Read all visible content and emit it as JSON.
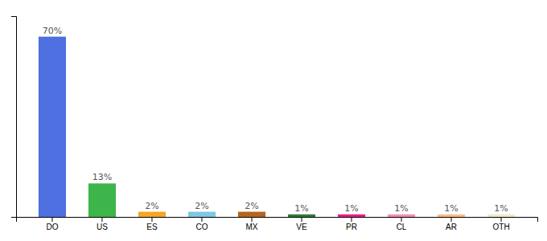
{
  "chart_data": {
    "type": "bar",
    "categories": [
      "DO",
      "US",
      "ES",
      "CO",
      "MX",
      "VE",
      "PR",
      "CL",
      "AR",
      "OTH"
    ],
    "values": [
      70,
      13,
      2,
      2,
      2,
      1,
      1,
      1,
      1,
      1
    ],
    "value_labels": [
      "70%",
      "13%",
      "2%",
      "2%",
      "2%",
      "1%",
      "1%",
      "1%",
      "1%",
      "1%"
    ],
    "colors": [
      "#4d6fe0",
      "#3db54a",
      "#f5a623",
      "#7ec8e3",
      "#b5651d",
      "#2e7d32",
      "#e91e8c",
      "#f48fb1",
      "#ffbb88",
      "#f0ecc8"
    ],
    "ylim": [
      0,
      78
    ],
    "data_labels": true,
    "tick_labels": "x",
    "grid": false
  }
}
